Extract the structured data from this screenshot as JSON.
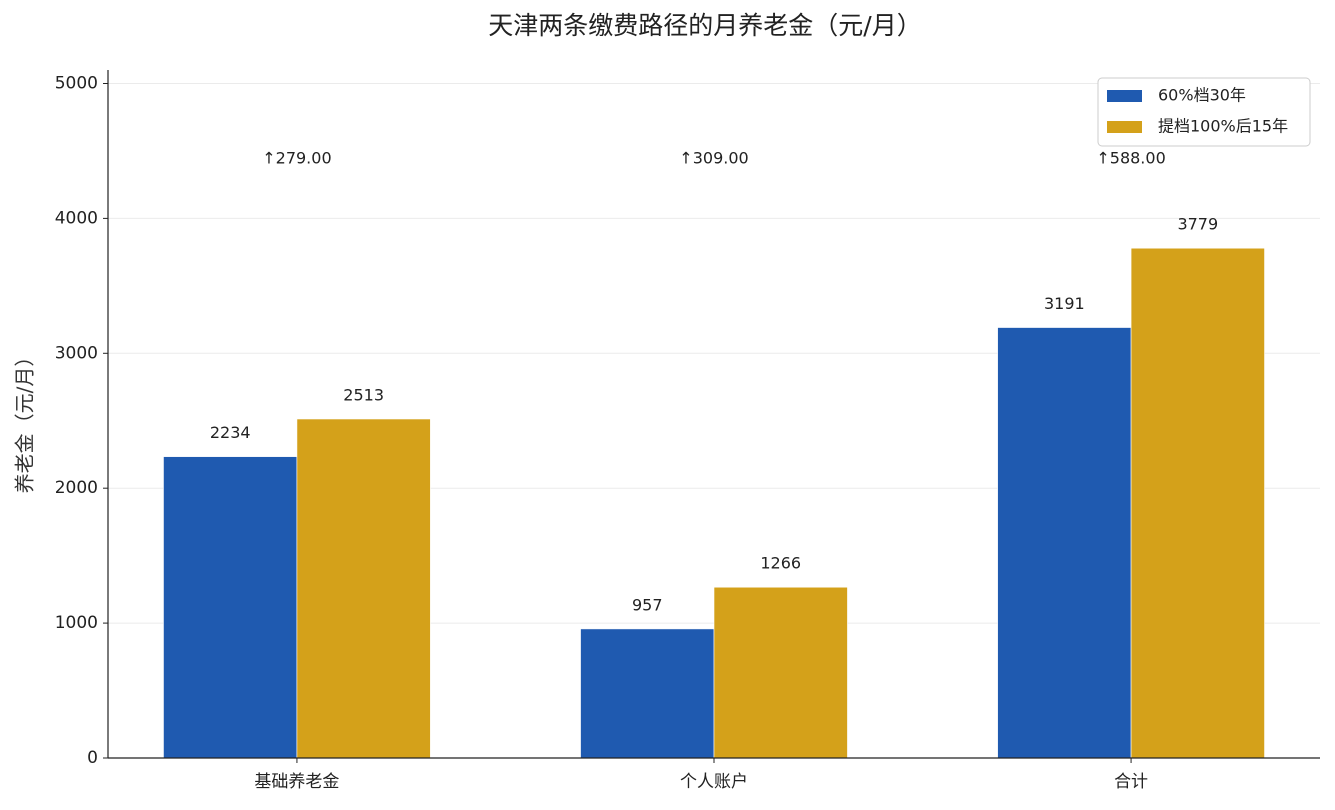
{
  "chart_data": {
    "type": "bar",
    "title": "天津两条缴费路径的月养老金（元/月）",
    "y_label": "养老金（元/月）",
    "categories": [
      "基础养老金",
      "个人账户",
      "合计"
    ],
    "series": [
      {
        "name": "60%档30年",
        "color": "#1f5ab0",
        "values": [
          2234,
          957,
          3191
        ]
      },
      {
        "name": "提档100%后15年",
        "color": "#d4a11a",
        "values": [
          2513,
          1266,
          3779
        ]
      }
    ],
    "annotations": [
      "↑279.00",
      "↑309.00",
      "↑588.00"
    ],
    "annotation_color": "#2eaa55",
    "ylim": [
      0,
      5100
    ],
    "yticks": [
      0,
      1000,
      2000,
      3000,
      4000,
      5000
    ],
    "grid": true,
    "legend": "upper right"
  }
}
